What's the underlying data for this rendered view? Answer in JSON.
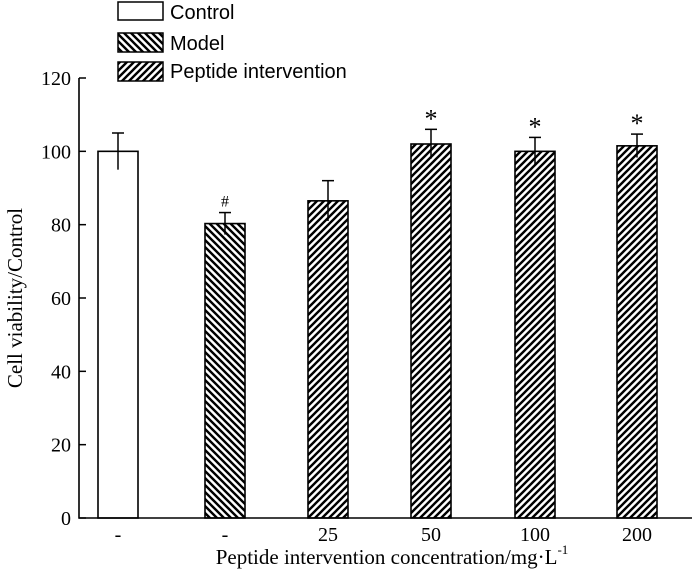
{
  "chart_data": {
    "type": "bar",
    "title": "",
    "xlabel": "Peptide intervention concentration/mg·L",
    "xlabel_superscript": "-1",
    "ylabel": "Cell viability/Control",
    "ylim": [
      0,
      120
    ],
    "yticks": [
      0,
      20,
      40,
      60,
      80,
      100,
      120
    ],
    "grid": false,
    "legend_position": "top-left",
    "legend": [
      {
        "label": "Control",
        "pattern": "blank"
      },
      {
        "label": "Model",
        "pattern": "hatch-back"
      },
      {
        "label": "Peptide intervention",
        "pattern": "hatch-forward"
      }
    ],
    "categories": [
      "-",
      "-",
      "25",
      "50",
      "100",
      "200"
    ],
    "bars": [
      {
        "category": "-",
        "group": "Control",
        "pattern": "blank",
        "value": 100,
        "error": 5,
        "annotation": ""
      },
      {
        "category": "-",
        "group": "Model",
        "pattern": "hatch-back",
        "value": 80.3,
        "error": 3,
        "annotation": "#"
      },
      {
        "category": "25",
        "group": "Peptide intervention",
        "pattern": "hatch-forward",
        "value": 86.5,
        "error": 5.5,
        "annotation": ""
      },
      {
        "category": "50",
        "group": "Peptide intervention",
        "pattern": "hatch-forward",
        "value": 102,
        "error": 4,
        "annotation": "*"
      },
      {
        "category": "100",
        "group": "Peptide intervention",
        "pattern": "hatch-forward",
        "value": 100,
        "error": 3.8,
        "annotation": "*"
      },
      {
        "category": "200",
        "group": "Peptide intervention",
        "pattern": "hatch-forward",
        "value": 101.5,
        "error": 3.2,
        "annotation": "*"
      }
    ]
  }
}
